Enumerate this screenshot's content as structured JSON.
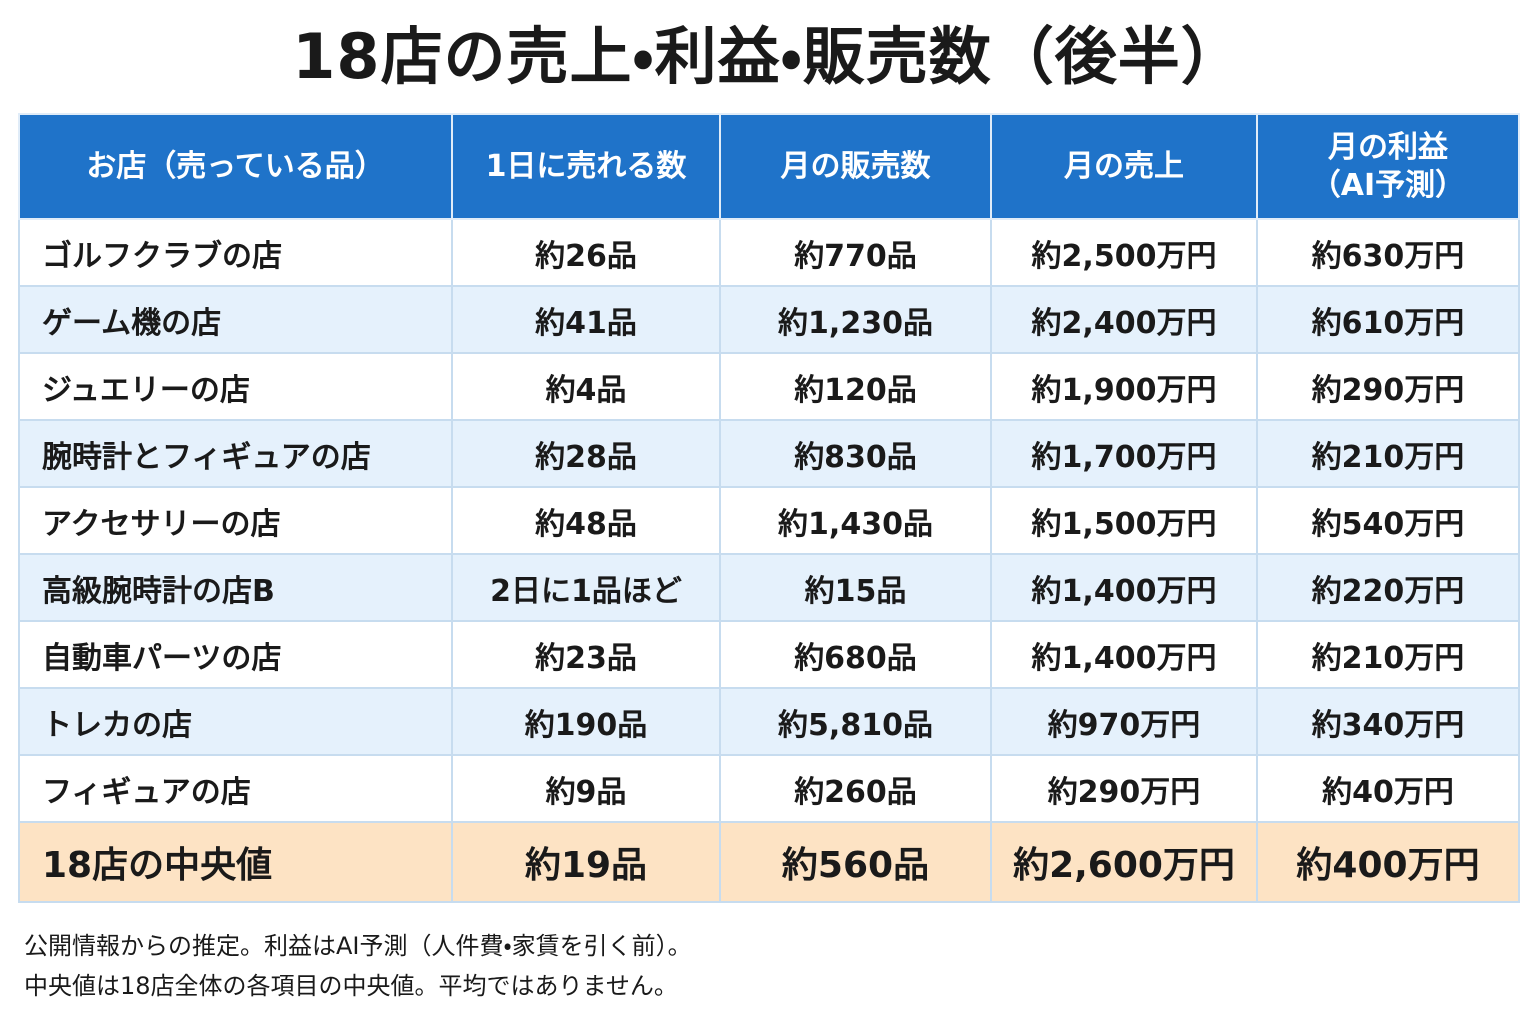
{
  "title": "18店の売上・利益・販売数（後半）",
  "table": {
    "header": [
      "お店（売っている品）",
      "1日に売れる数",
      "月の販売数",
      "月の売上",
      "月の利益\n（AI予測）"
    ],
    "rows": [
      [
        "ゴルフクラブの店",
        "約26品",
        "約770品",
        "約2,500万円",
        "約630万円"
      ],
      [
        "ゲーム機の店",
        "約41品",
        "約1,230品",
        "約2,400万円",
        "約610万円"
      ],
      [
        "ジュエリーの店",
        "約4品",
        "約120品",
        "約1,900万円",
        "約290万円"
      ],
      [
        "腕時計とフィギュアの店",
        "約28品",
        "約830品",
        "約1,700万円",
        "約210万円"
      ],
      [
        "アクセサリーの店",
        "約48品",
        "約1,430品",
        "約1,500万円",
        "約540万円"
      ],
      [
        "高級腕時計の店B",
        "2日に1品ほど",
        "約15品",
        "約1,400万円",
        "約220万円"
      ],
      [
        "自動車パーツの店",
        "約23品",
        "約680品",
        "約1,400万円",
        "約210万円"
      ],
      [
        "トレカの店",
        "約190品",
        "約5,810品",
        "約970万円",
        "約340万円"
      ],
      [
        "フィギュアの店",
        "約9品",
        "約260品",
        "約290万円",
        "約40万円"
      ]
    ],
    "summary": [
      "18店の中央値",
      "約19品",
      "約560品",
      "約2,600万円",
      "約400万円"
    ]
  },
  "footnotes": [
    "公開情報からの推定。利益はAI予測（人件費・家賃を引く前）。",
    "中央値は18店全体の各項目の中央値。平均ではありません。"
  ]
}
